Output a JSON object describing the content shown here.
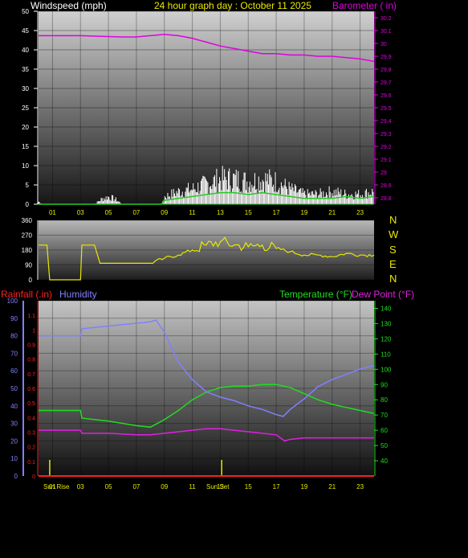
{
  "header": {
    "left_title": "Windspeed (mph)",
    "center_title": "24 hour graph day : October 11 2025",
    "right_title": "Barometer ( in)"
  },
  "colors": {
    "wind": "#ffffff",
    "gust": "#c8c8c8",
    "wind_avg": "#22cc22",
    "barometer": "#e000e0",
    "direction": "#e8e800",
    "rain": "#ff2020",
    "humidity": "#8080ff",
    "temperature": "#20dd20",
    "dewpoint": "#e020e0",
    "sun": "#e8e800",
    "title_yellow": "#e8e800"
  },
  "compass": [
    "N",
    "W",
    "S",
    "E",
    "N"
  ],
  "bottom_labels": {
    "rainfall": "Rainfall (.in)",
    "humidity": "Humidity",
    "temperature": "Temperature (°F)",
    "dewpoint": "Dew Point (°F)",
    "sunrise": "Sun Rise",
    "sunset": "Sun Set"
  },
  "chart_data": [
    {
      "type": "line",
      "name": "wind-barometer",
      "x_ticks": [
        "01",
        "03",
        "05",
        "07",
        "09",
        "11",
        "13",
        "15",
        "17",
        "19",
        "21",
        "23"
      ],
      "ylim": [
        0,
        50
      ],
      "y_ticks": [
        0,
        5,
        10,
        15,
        20,
        25,
        30,
        35,
        40,
        45,
        50
      ],
      "y2lim": [
        28.75,
        30.25
      ],
      "y2_ticks": [
        "28.8",
        "28.9",
        "29",
        "29.1",
        "29.2",
        "29.3",
        "29.4",
        "29.5",
        "29.6",
        "29.7",
        "29.8",
        "29.9",
        "30",
        "30.1",
        "30.2"
      ],
      "barometer": {
        "x": [
          0,
          3,
          6,
          7,
          8,
          9,
          10,
          11,
          12,
          13,
          14,
          15,
          16,
          17,
          18,
          19,
          20,
          21,
          22,
          23,
          24
        ],
        "y": [
          30.06,
          30.06,
          30.05,
          30.05,
          30.06,
          30.07,
          30.06,
          30.04,
          30.01,
          29.98,
          29.96,
          29.94,
          29.92,
          29.92,
          29.91,
          29.91,
          29.9,
          29.9,
          29.89,
          29.88,
          29.86
        ]
      },
      "wind_envelope": {
        "x": [
          0,
          0.3,
          4,
          4.5,
          5,
          5.5,
          6,
          8.8,
          9,
          10,
          11,
          12,
          13,
          14,
          15,
          16,
          17,
          18,
          19,
          20,
          21,
          22,
          23,
          24
        ],
        "y": [
          1,
          0,
          0,
          2,
          3,
          2,
          0,
          0,
          3,
          5,
          6,
          8,
          10,
          10,
          9,
          10,
          9,
          6,
          4,
          4,
          5,
          4,
          4,
          5
        ]
      },
      "wind_avg": {
        "x": [
          0,
          8.8,
          9,
          10,
          11,
          12,
          13,
          14,
          15,
          16,
          17,
          18,
          19,
          20,
          21,
          22,
          23,
          24
        ],
        "y": [
          0,
          0,
          1,
          1.5,
          2,
          2.5,
          3,
          3,
          2.5,
          3,
          2.5,
          2,
          1.5,
          1.5,
          1.5,
          2,
          1.5,
          2
        ]
      }
    },
    {
      "type": "line",
      "name": "wind-direction",
      "ylim": [
        0,
        360
      ],
      "y_ticks": [
        0,
        90,
        180,
        270,
        360
      ],
      "x": [
        0,
        0.6,
        0.8,
        3,
        3.1,
        4,
        4.4,
        5,
        8,
        9,
        10,
        11,
        12,
        13,
        14,
        15,
        16,
        17,
        18,
        19,
        20,
        21,
        22,
        23,
        24
      ],
      "y": [
        210,
        210,
        0,
        0,
        210,
        210,
        100,
        100,
        100,
        130,
        150,
        180,
        210,
        230,
        210,
        200,
        210,
        190,
        170,
        150,
        150,
        140,
        160,
        150,
        150
      ]
    },
    {
      "type": "line",
      "name": "rain-humidity-temperature",
      "rain_ylim": [
        0,
        1.2
      ],
      "rain_ticks": [
        "0",
        "0.1",
        "0.2",
        "0.3",
        "0.4",
        "0.5",
        "0.6",
        "0.7",
        "0.8",
        "0.9",
        "1",
        "1.1"
      ],
      "humidity_ylim": [
        0,
        100
      ],
      "humidity_ticks": [
        0,
        10,
        20,
        30,
        40,
        50,
        60,
        70,
        80,
        90,
        100
      ],
      "temp_ylim": [
        30,
        145
      ],
      "temp_ticks": [
        40,
        50,
        60,
        70,
        80,
        90,
        100,
        110,
        120,
        130,
        140
      ],
      "x_ticks": [
        "01",
        "03",
        "05",
        "07",
        "09",
        "11",
        "13",
        "15",
        "17",
        "19",
        "21",
        "23"
      ],
      "humidity": {
        "x": [
          0,
          3,
          3.1,
          8,
          8.4,
          9,
          10,
          11,
          12,
          13,
          14,
          15,
          16,
          17,
          17.5,
          18,
          19,
          20,
          21,
          22,
          23,
          24
        ],
        "y": [
          80,
          80,
          84,
          88,
          89,
          82,
          65,
          55,
          48,
          45,
          43,
          40,
          38,
          35,
          34,
          38,
          44,
          51,
          55,
          58,
          61,
          63
        ]
      },
      "temperature": {
        "x": [
          0,
          3,
          3.1,
          5,
          7,
          8,
          9,
          10,
          11,
          12,
          13,
          14,
          15,
          16,
          17,
          18,
          19,
          20,
          21,
          22,
          23,
          24
        ],
        "y": [
          73,
          73,
          68,
          66,
          63,
          62,
          67,
          73,
          80,
          85,
          88,
          89,
          89,
          90,
          90,
          88,
          84,
          80,
          77,
          75,
          73,
          71
        ]
      },
      "dewpoint": {
        "x": [
          0,
          3,
          3.1,
          5,
          7,
          8,
          9,
          10,
          11,
          12,
          13,
          14,
          15,
          16,
          17,
          17.6,
          18,
          19,
          20,
          21,
          22,
          23,
          24
        ],
        "y": [
          60,
          60,
          58,
          58,
          57,
          57,
          58,
          59,
          60,
          61,
          61,
          60,
          59,
          58,
          57,
          53,
          54,
          55,
          55,
          55,
          55,
          55,
          55
        ]
      },
      "rainfall": {
        "x": [
          0,
          24
        ],
        "y": [
          0,
          0
        ]
      },
      "sunrise_x": 0.8,
      "sunset_x": 13.1
    }
  ]
}
